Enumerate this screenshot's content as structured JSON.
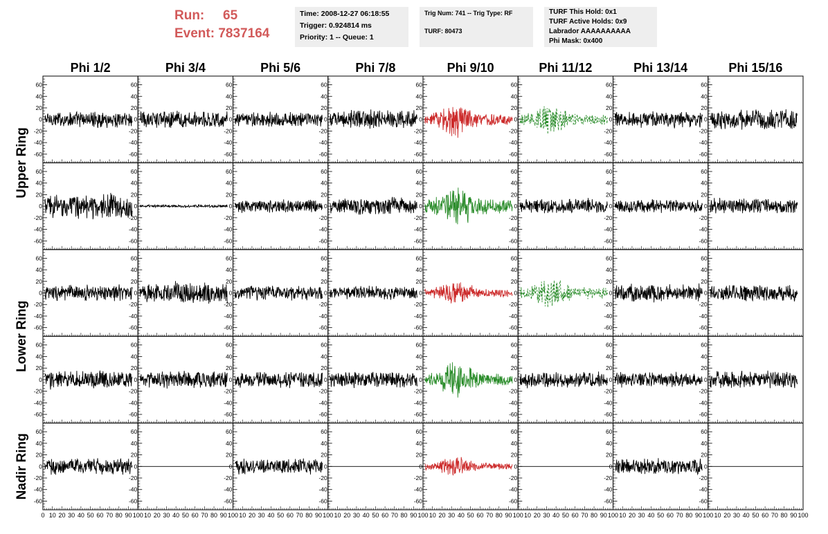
{
  "header": {
    "run_label": "Run:",
    "run_value": "65",
    "event_label": "Event:",
    "event_value": "7837164",
    "time_text": "Time: 2008-12-27 06:18:55",
    "trigger_text": "Trigger: 0.924814 ms",
    "priority_text": "Priority: 1 -- Queue: 1",
    "trig_text": "Trig Num: 741 -- Trig Type: RF",
    "turf_text": "TURF: 80473",
    "turf_hold_text": "TURF This Hold: 0x1",
    "turf_active_text": "TURF Active Holds: 0x9",
    "labrador_text": "Labrador AAAAAAAAAA",
    "phi_mask_text": "Phi Mask: 0x400"
  },
  "colors": {
    "run_text": "#d25a5a",
    "info_background": "#eeeeee",
    "trace_black": "#000000",
    "trace_red": "#cc2a2a",
    "trace_green": "#2a8c2a"
  },
  "chart_data": {
    "type": "line",
    "columns": [
      "Phi 1/2",
      "Phi 3/4",
      "Phi 5/6",
      "Phi 7/8",
      "Phi 9/10",
      "Phi 11/12",
      "Phi 13/14",
      "Phi 15/16"
    ],
    "rows": [
      "Upper Ring",
      "Lower Ring",
      "Nadir Ring"
    ],
    "xlim": [
      0,
      100
    ],
    "ylim": [
      -75,
      75
    ],
    "y_ticks": [
      -60,
      -40,
      -20,
      0,
      20,
      40,
      60
    ],
    "x_tick_labels": [
      "0",
      "10",
      "20",
      "30",
      "40",
      "50",
      "60",
      "70",
      "80",
      "90",
      "100"
    ],
    "grid": false,
    "panels": [
      [
        {
          "color": "black",
          "style": "solid",
          "amplitude": 12,
          "offset": 0
        },
        {
          "color": "black",
          "style": "solid",
          "amplitude": 13,
          "offset": 0
        },
        {
          "color": "black",
          "style": "solid",
          "amplitude": 11,
          "offset": 0
        },
        {
          "color": "black",
          "style": "solid",
          "amplitude": 14,
          "offset": 0
        },
        {
          "color": "red",
          "style": "solid",
          "amplitude": 20,
          "offset": 0
        },
        {
          "color": "green",
          "style": "dashed",
          "amplitude": 18,
          "offset": 0
        },
        {
          "color": "black",
          "style": "solid",
          "amplitude": 12,
          "offset": 0
        },
        {
          "color": "black",
          "style": "solid",
          "amplitude": 15,
          "offset": 0
        }
      ],
      [
        {
          "color": "black",
          "style": "solid",
          "amplitude": 18,
          "offset": 0
        },
        {
          "color": "black",
          "style": "solid",
          "amplitude": 2,
          "offset": 0
        },
        {
          "color": "black",
          "style": "solid",
          "amplitude": 10,
          "offset": 0
        },
        {
          "color": "black",
          "style": "solid",
          "amplitude": 14,
          "offset": 0
        },
        {
          "color": "green",
          "style": "solid",
          "amplitude": 24,
          "offset": 0
        },
        {
          "color": "black",
          "style": "solid",
          "amplitude": 11,
          "offset": 0
        },
        {
          "color": "black",
          "style": "solid",
          "amplitude": 10,
          "offset": 0
        },
        {
          "color": "black",
          "style": "solid",
          "amplitude": 12,
          "offset": 0
        }
      ],
      [
        {
          "color": "black",
          "style": "solid",
          "amplitude": 12,
          "offset": 0
        },
        {
          "color": "black",
          "style": "solid",
          "amplitude": 16,
          "offset": 0
        },
        {
          "color": "black",
          "style": "solid",
          "amplitude": 11,
          "offset": 0
        },
        {
          "color": "black",
          "style": "solid",
          "amplitude": 10,
          "offset": 0
        },
        {
          "color": "red",
          "style": "solid",
          "amplitude": 14,
          "offset": 0
        },
        {
          "color": "green",
          "style": "dashed",
          "amplitude": 18,
          "offset": 0
        },
        {
          "color": "black",
          "style": "solid",
          "amplitude": 13,
          "offset": 0
        },
        {
          "color": "black",
          "style": "solid",
          "amplitude": 12,
          "offset": 0
        }
      ],
      [
        {
          "color": "black",
          "style": "solid",
          "amplitude": 14,
          "offset": 0
        },
        {
          "color": "black",
          "style": "solid",
          "amplitude": 13,
          "offset": 0
        },
        {
          "color": "black",
          "style": "solid",
          "amplitude": 12,
          "offset": 0
        },
        {
          "color": "black",
          "style": "solid",
          "amplitude": 12,
          "offset": 0
        },
        {
          "color": "green",
          "style": "solid",
          "amplitude": 20,
          "offset": 0
        },
        {
          "color": "black",
          "style": "solid",
          "amplitude": 12,
          "offset": 0
        },
        {
          "color": "black",
          "style": "solid",
          "amplitude": 11,
          "offset": 0
        },
        {
          "color": "black",
          "style": "solid",
          "amplitude": 13,
          "offset": 0
        }
      ],
      [
        {
          "color": "black",
          "style": "solid",
          "amplitude": 12,
          "offset": 0
        },
        {
          "color": "black",
          "style": "flat",
          "amplitude": 0,
          "offset": 0
        },
        {
          "color": "black",
          "style": "solid",
          "amplitude": 11,
          "offset": 0
        },
        {
          "color": "black",
          "style": "flat",
          "amplitude": 0,
          "offset": 0
        },
        {
          "color": "red",
          "style": "solid",
          "amplitude": 11,
          "offset": 0
        },
        {
          "color": "black",
          "style": "flat",
          "amplitude": 0,
          "offset": 0
        },
        {
          "color": "black",
          "style": "solid",
          "amplitude": 12,
          "offset": 0
        },
        {
          "color": "black",
          "style": "flat",
          "amplitude": 0,
          "offset": 0
        }
      ]
    ]
  }
}
